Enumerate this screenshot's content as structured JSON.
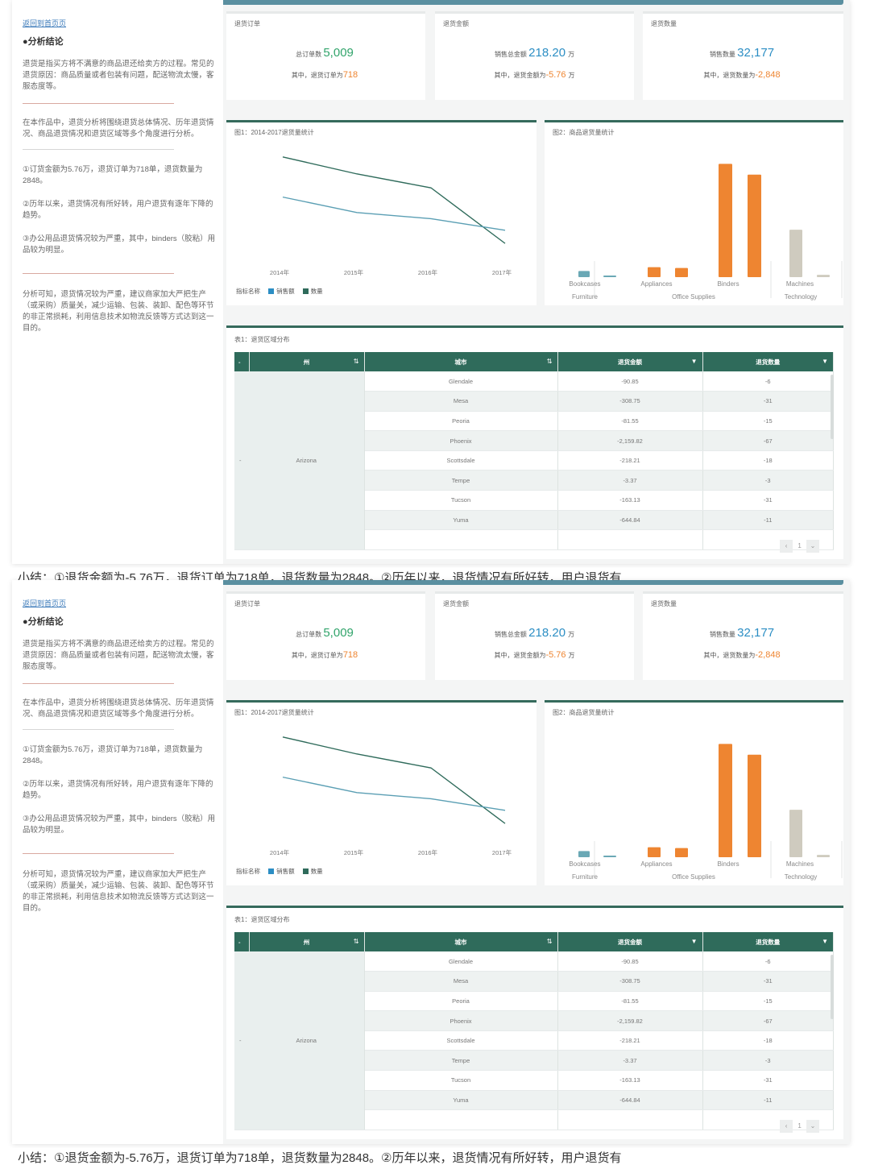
{
  "left": {
    "crumb": "返回到首页页",
    "heading": "●分析结论",
    "p1": "退货是指买方将不满意的商品退还给卖方的过程。常见的退货原因：商品质量或者包装有问题，配送物流太慢，客服态度等。",
    "p2": "在本作品中，退货分析将围绕退货总体情况、历年退货情况、商品退货情况和退货区域等多个角度进行分析。",
    "p3": "①订货金额为5.76万，退货订单为718单，退货数量为2848。",
    "p4": "②历年以来，退货情况有所好转，用户退货有逐年下降的趋势。",
    "p5": "③办公用品退货情况较为严重，其中，binders（胶粘）用品较为明显。",
    "p6": "分析可知，退货情况较为严重，建议商家加大严把生产（或采购）质量关，减少运输、包装、装卸、配色等环节的非正常损耗，利用信息技术如物流反馈等方式达到这一目的。"
  },
  "kpis": [
    {
      "title": "退货订单",
      "big_label": "总订单数",
      "big_value": "5,009",
      "big_unit": "",
      "small_label": "其中，退货订单为",
      "small_value": "718",
      "small_unit": ""
    },
    {
      "title": "退货金额",
      "big_label": "销售总金额",
      "big_value": "218.20",
      "big_unit": "万",
      "small_label": "其中，退货金额为",
      "small_value": "-5.76",
      "small_unit": "万"
    },
    {
      "title": "退货数量",
      "big_label": "销售数量",
      "big_value": "32,177",
      "big_unit": "",
      "small_label": "其中，退货数量为",
      "small_value": "-2,848",
      "small_unit": ""
    }
  ],
  "line_panel": {
    "title": "图1：2014-2017退货量统计",
    "legend_label": "指标名称",
    "legend_items": [
      "销售额",
      "数量"
    ]
  },
  "bar_panel": {
    "title": "图2：商品退货量统计"
  },
  "table_panel": {
    "title": "表1：退货区域分布",
    "columns": [
      "州",
      "城市",
      "退货金额",
      "退货数量"
    ],
    "province": "Arizona",
    "pager_page": "1"
  },
  "colors": {
    "teal": "#2f6b5b",
    "blue": "#2c8ec4",
    "green": "#31a46b",
    "orange": "#ee8531",
    "beige": "#cfcbbf",
    "bar_teal": "#6aa8b5"
  },
  "chart_data": [
    {
      "type": "line",
      "x": [
        "2014年",
        "2015年",
        "2016年",
        "2017年"
      ],
      "series": [
        {
          "name": "销售额",
          "values": [
            100,
            78,
            60,
            -12
          ]
        },
        {
          "name": "数量",
          "values": [
            48,
            28,
            20,
            5
          ]
        }
      ],
      "grid": false,
      "legend": "bottom-left"
    },
    {
      "type": "bar",
      "groups": [
        {
          "name": "Furniture",
          "categories": [
            "Bookcases",
            ""
          ],
          "values": [
            8,
            2
          ]
        },
        {
          "name": "Office Supplies",
          "categories": [
            "Appliances",
            "",
            "Binders",
            ""
          ],
          "values": [
            13,
            12,
            148,
            134
          ]
        },
        {
          "name": "Technology",
          "categories": [
            "Machines",
            ""
          ],
          "values": [
            62,
            3
          ]
        }
      ],
      "grid": false
    }
  ],
  "table": {
    "rows": [
      {
        "city": "Glendale",
        "amount": "-90.85",
        "qty": "-6"
      },
      {
        "city": "Mesa",
        "amount": "-308.75",
        "qty": "-31"
      },
      {
        "city": "Peoria",
        "amount": "-81.55",
        "qty": "-15"
      },
      {
        "city": "Phoenix",
        "amount": "-2,159.82",
        "qty": "-67"
      },
      {
        "city": "Scottsdale",
        "amount": "-218.21",
        "qty": "-18"
      },
      {
        "city": "Tempe",
        "amount": "-3.37",
        "qty": "-3"
      },
      {
        "city": "Tucson",
        "amount": "-163.13",
        "qty": "-31"
      },
      {
        "city": "Yuma",
        "amount": "-644.84",
        "qty": "-11"
      }
    ]
  },
  "caption": "小结：①退货金额为-5.76万，退货订单为718单，退货数量为2848。②历年以来，退货情况有所好转，用户退货有"
}
